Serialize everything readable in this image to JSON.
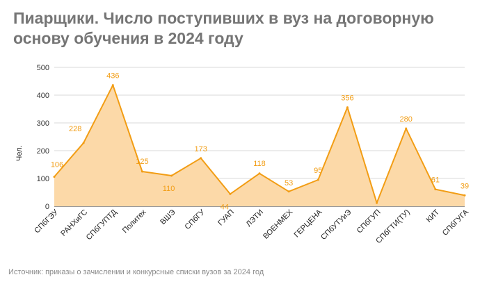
{
  "title": "Пиарщики. Число поступивших в вуз на договорную основу обучения в 2024 году",
  "source": "Источник: приказы о зачислении и конкурсные списки вузов за 2024 год",
  "colors": {
    "line": "#f29d14",
    "fill": "#fcd9a8",
    "grid": "#d9d9d9",
    "axis": "#333333"
  },
  "chart_data": {
    "type": "area",
    "title": "Пиарщики. Число поступивших в вуз на договорную основу обучения в 2024 году",
    "xlabel": "",
    "ylabel": "Чел.",
    "ylim": [
      0,
      500
    ],
    "yticks": [
      0,
      100,
      200,
      300,
      400,
      500
    ],
    "grid": true,
    "categories": [
      "СПбГЭУ",
      "РАНХиГС",
      "СПбГУПТД",
      "Политех",
      "ВШЭ",
      "СПбГУ",
      "ГУАП",
      "ЛЭТИ",
      "ВОЕНМЕХ",
      "ГЕРЦЕНА",
      "СПбУТУиЭ",
      "СПбГУП",
      "СПбГТИ(ТУ)",
      "КИТ",
      "СПбГУГА"
    ],
    "values": [
      106,
      228,
      436,
      125,
      110,
      173,
      44,
      118,
      53,
      95,
      356,
      12,
      280,
      61,
      39
    ],
    "data_labels": [
      "106",
      "228",
      "436",
      "125",
      "110",
      "173",
      "44",
      "118",
      "53",
      "95",
      "356",
      "",
      "280",
      "61",
      "39"
    ]
  }
}
